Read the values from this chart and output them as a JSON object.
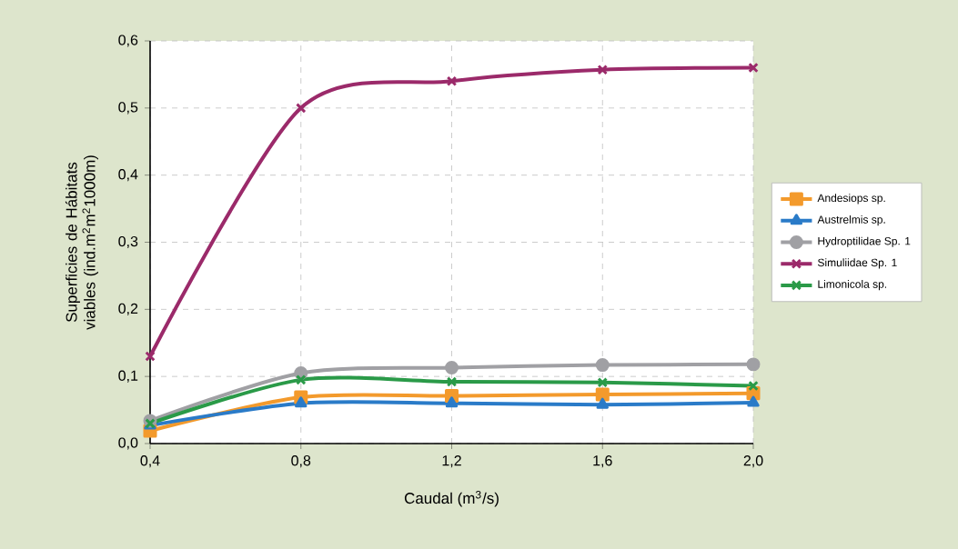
{
  "chart_data": {
    "type": "line",
    "xlabel": "Caudal (m$^{3}$/s)",
    "ylabel": "Superficies de Hábitats viables (ind.m$^{2}$m$^{2}$1000m)",
    "x": [
      0.4,
      0.8,
      1.2,
      1.6,
      2.0
    ],
    "series": [
      {
        "name": "Andesiops sp.",
        "color": "#f39a2c",
        "marker": "square",
        "values": [
          0.019,
          0.069,
          0.071,
          0.073,
          0.075
        ]
      },
      {
        "name": "Austrelmis sp.",
        "color": "#2a7bc8",
        "marker": "triangle",
        "values": [
          0.027,
          0.06,
          0.06,
          0.058,
          0.061
        ]
      },
      {
        "name": "Hydroptilidae Sp. 1",
        "color": "#a0a0a4",
        "marker": "circle",
        "values": [
          0.034,
          0.105,
          0.113,
          0.117,
          0.118
        ]
      },
      {
        "name": "Simuliidae Sp. 1",
        "color": "#9b2a6a",
        "marker": "cross",
        "values": [
          0.13,
          0.5,
          0.54,
          0.557,
          0.56
        ]
      },
      {
        "name": "Limonicola sp.",
        "color": "#2a9a48",
        "marker": "cross",
        "values": [
          0.03,
          0.095,
          0.092,
          0.091,
          0.086
        ]
      }
    ],
    "xlim": [
      0.4,
      2.0
    ],
    "ylim": [
      0,
      0.6
    ],
    "xticks": [
      {
        "value": 0.4,
        "label": "0,4"
      },
      {
        "value": 0.8,
        "label": "0,8"
      },
      {
        "value": 1.2,
        "label": "1,2"
      },
      {
        "value": 1.6,
        "label": "1,6"
      },
      {
        "value": 2.0,
        "label": "2,0"
      }
    ],
    "yticks": [
      {
        "value": 0,
        "label": "0,0"
      },
      {
        "value": 0.1,
        "label": "0,1"
      },
      {
        "value": 0.2,
        "label": "0,2"
      },
      {
        "value": 0.3,
        "label": "0,3"
      },
      {
        "value": 0.4,
        "label": "0,4"
      },
      {
        "value": 0.5,
        "label": "0,5"
      },
      {
        "value": 0.6,
        "label": "0,6"
      }
    ],
    "grid": true,
    "legend": "right",
    "line_style": "solid"
  }
}
